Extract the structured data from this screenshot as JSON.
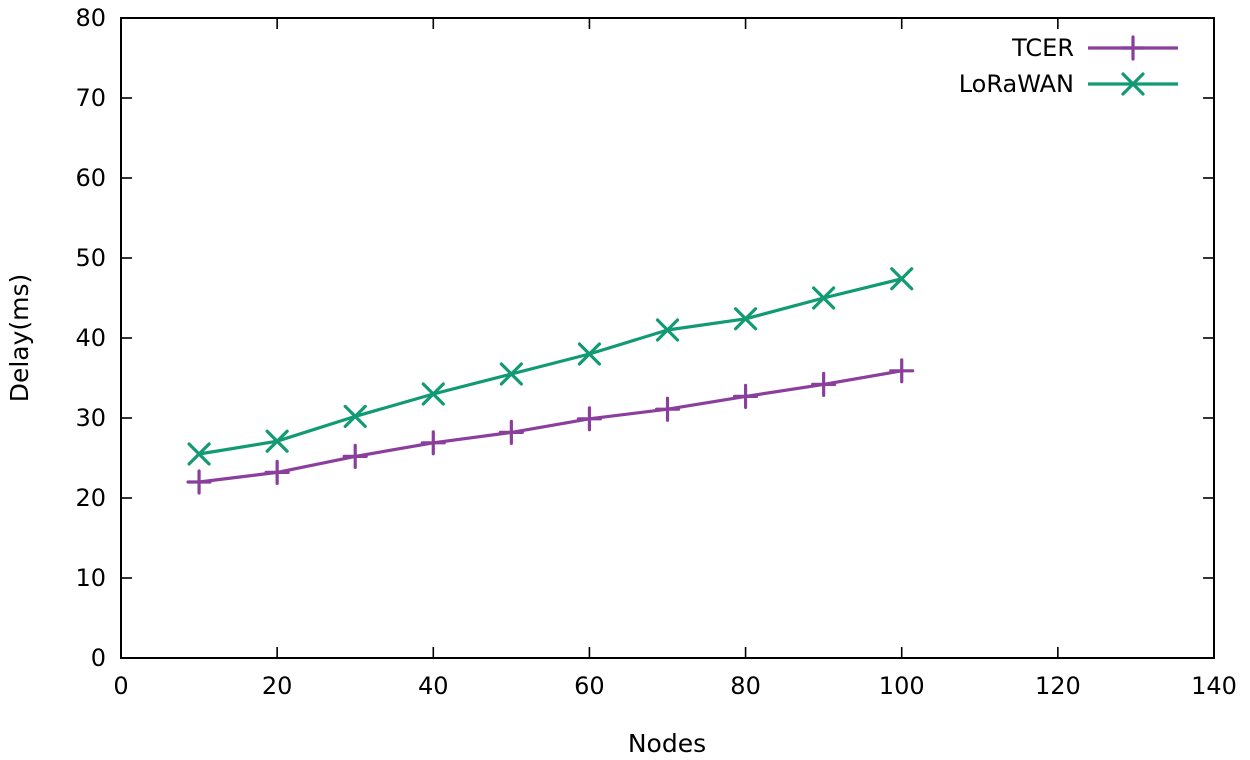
{
  "chart_data": {
    "type": "line",
    "title": "",
    "xlabel": "Nodes",
    "ylabel": "Delay(ms)",
    "xlim": [
      0,
      140
    ],
    "ylim": [
      0,
      80
    ],
    "x_ticks": [
      0,
      20,
      40,
      60,
      80,
      100,
      120,
      140
    ],
    "y_ticks": [
      0,
      10,
      20,
      30,
      40,
      50,
      60,
      70,
      80
    ],
    "grid": false,
    "legend_position": "top-right",
    "x": [
      10,
      20,
      30,
      40,
      50,
      60,
      70,
      80,
      90,
      100
    ],
    "series": [
      {
        "name": "TCER",
        "color": "#8b3f9c",
        "marker": "plus",
        "values": [
          22.0,
          23.2,
          25.2,
          26.9,
          28.2,
          29.9,
          31.1,
          32.7,
          34.2,
          35.9
        ]
      },
      {
        "name": "LoRaWAN",
        "color": "#119a73",
        "marker": "cross",
        "values": [
          25.5,
          27.1,
          30.2,
          33.0,
          35.5,
          38.0,
          41.0,
          42.4,
          45.0,
          47.4
        ]
      }
    ]
  }
}
